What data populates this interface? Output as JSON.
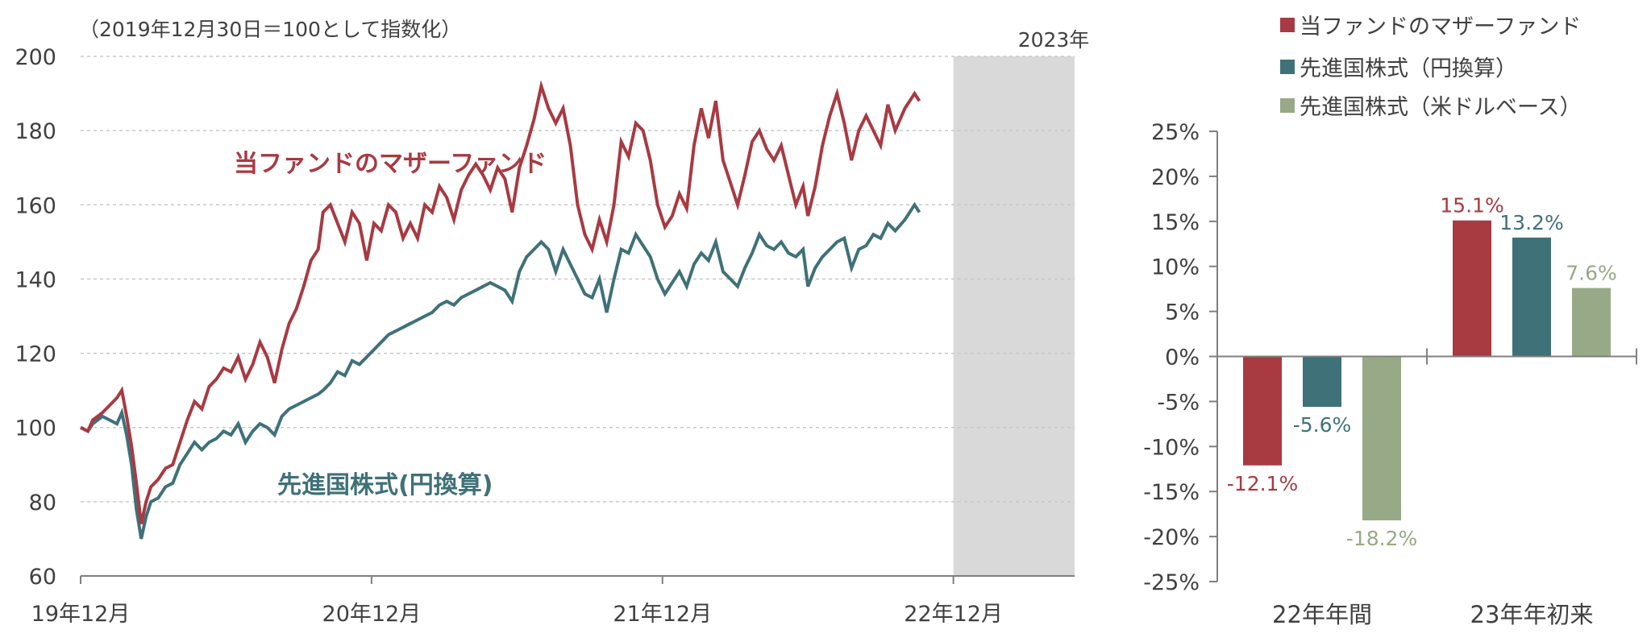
{
  "colors": {
    "fund": "#a83a42",
    "developed_yen": "#3f7178",
    "developed_usd": "#97a986",
    "shade": "#d9d9d9",
    "grid": "#c8c8c8",
    "axis": "#7f7f7f"
  },
  "chart_data": [
    {
      "type": "line",
      "note": "（2019年12月30日＝100として指数化）",
      "shaded_region_label": "2023年",
      "ylim": [
        60,
        200
      ],
      "yticks": [
        "60",
        "80",
        "100",
        "120",
        "140",
        "160",
        "180",
        "200"
      ],
      "xticks": [
        "19年12月",
        "20年12月",
        "21年12月",
        "22年12月"
      ],
      "x_range": [
        "2019-12",
        "2023-05"
      ],
      "shaded_from": "2022-12",
      "series": [
        {
          "name": "当ファンドのマザーファンド",
          "label_text": "当ファンドのマザーファンド",
          "points": [
            [
              0,
              100
            ],
            [
              0.3,
              99
            ],
            [
              0.5,
              102
            ],
            [
              0.9,
              104
            ],
            [
              1.2,
              106
            ],
            [
              1.5,
              108
            ],
            [
              1.7,
              110
            ],
            [
              1.9,
              103
            ],
            [
              2.1,
              95
            ],
            [
              2.3,
              85
            ],
            [
              2.5,
              74
            ],
            [
              2.7,
              80
            ],
            [
              2.9,
              84
            ],
            [
              3.2,
              86
            ],
            [
              3.5,
              89
            ],
            [
              3.8,
              90
            ],
            [
              4.1,
              96
            ],
            [
              4.4,
              102
            ],
            [
              4.7,
              107
            ],
            [
              5.0,
              105
            ],
            [
              5.3,
              111
            ],
            [
              5.6,
              113
            ],
            [
              5.9,
              116
            ],
            [
              6.2,
              115
            ],
            [
              6.5,
              119
            ],
            [
              6.8,
              113
            ],
            [
              7.1,
              117
            ],
            [
              7.4,
              123
            ],
            [
              7.7,
              119
            ],
            [
              8.0,
              112
            ],
            [
              8.3,
              121
            ],
            [
              8.6,
              128
            ],
            [
              8.9,
              132
            ],
            [
              9.2,
              138
            ],
            [
              9.5,
              145
            ],
            [
              9.8,
              148
            ],
            [
              10.0,
              158
            ],
            [
              10.3,
              160
            ],
            [
              10.6,
              155
            ],
            [
              10.9,
              150
            ],
            [
              11.2,
              158
            ],
            [
              11.5,
              155
            ],
            [
              11.8,
              145
            ],
            [
              12.1,
              155
            ],
            [
              12.4,
              153
            ],
            [
              12.7,
              160
            ],
            [
              13.0,
              158
            ],
            [
              13.3,
              151
            ],
            [
              13.6,
              155
            ],
            [
              13.9,
              151
            ],
            [
              14.2,
              160
            ],
            [
              14.5,
              158
            ],
            [
              14.8,
              165
            ],
            [
              15.1,
              162
            ],
            [
              15.4,
              156
            ],
            [
              15.7,
              164
            ],
            [
              16.0,
              168
            ],
            [
              16.3,
              171
            ],
            [
              16.6,
              168
            ],
            [
              16.9,
              164
            ],
            [
              17.2,
              170
            ],
            [
              17.5,
              167
            ],
            [
              17.8,
              158
            ],
            [
              18.1,
              170
            ],
            [
              18.4,
              176
            ],
            [
              18.7,
              183
            ],
            [
              19.0,
              192
            ],
            [
              19.3,
              186
            ],
            [
              19.6,
              182
            ],
            [
              19.9,
              186
            ],
            [
              20.2,
              176
            ],
            [
              20.5,
              160
            ],
            [
              20.8,
              152
            ],
            [
              21.1,
              148
            ],
            [
              21.4,
              156
            ],
            [
              21.7,
              150
            ],
            [
              22.0,
              160
            ],
            [
              22.3,
              177
            ],
            [
              22.6,
              173
            ],
            [
              22.9,
              182
            ],
            [
              23.2,
              180
            ],
            [
              23.5,
              172
            ],
            [
              23.8,
              160
            ],
            [
              24.1,
              154
            ],
            [
              24.4,
              157
            ],
            [
              24.7,
              163
            ],
            [
              25.0,
              159
            ],
            [
              25.3,
              176
            ],
            [
              25.6,
              186
            ],
            [
              25.9,
              178
            ],
            [
              26.2,
              188
            ],
            [
              26.5,
              172
            ],
            [
              26.8,
              166
            ],
            [
              27.1,
              160
            ],
            [
              27.4,
              168
            ],
            [
              27.7,
              177
            ],
            [
              28.0,
              180
            ],
            [
              28.3,
              175
            ],
            [
              28.6,
              172
            ],
            [
              28.9,
              176
            ],
            [
              29.2,
              168
            ],
            [
              29.5,
              160
            ],
            [
              29.8,
              165
            ],
            [
              30.0,
              157
            ],
            [
              30.3,
              165
            ],
            [
              30.6,
              176
            ],
            [
              30.9,
              184
            ],
            [
              31.2,
              190
            ],
            [
              31.5,
              182
            ],
            [
              31.8,
              172
            ],
            [
              32.1,
              180
            ],
            [
              32.4,
              184
            ],
            [
              32.7,
              180
            ],
            [
              33.0,
              176
            ],
            [
              33.3,
              187
            ],
            [
              33.6,
              180
            ],
            [
              34.0,
              186
            ],
            [
              34.4,
              190
            ],
            [
              34.6,
              188
            ]
          ]
        },
        {
          "name": "先進国株式（円換算）",
          "label_text": "先進国株式(円換算)",
          "points": [
            [
              0,
              100
            ],
            [
              0.3,
              99
            ],
            [
              0.5,
              101
            ],
            [
              0.9,
              103
            ],
            [
              1.2,
              102
            ],
            [
              1.5,
              101
            ],
            [
              1.7,
              104
            ],
            [
              1.9,
              98
            ],
            [
              2.1,
              90
            ],
            [
              2.3,
              78
            ],
            [
              2.5,
              70
            ],
            [
              2.7,
              76
            ],
            [
              2.9,
              80
            ],
            [
              3.2,
              81
            ],
            [
              3.5,
              84
            ],
            [
              3.8,
              85
            ],
            [
              4.1,
              90
            ],
            [
              4.4,
              93
            ],
            [
              4.7,
              96
            ],
            [
              5.0,
              94
            ],
            [
              5.3,
              96
            ],
            [
              5.6,
              97
            ],
            [
              5.9,
              99
            ],
            [
              6.2,
              98
            ],
            [
              6.5,
              101
            ],
            [
              6.8,
              96
            ],
            [
              7.1,
              99
            ],
            [
              7.4,
              101
            ],
            [
              7.7,
              100
            ],
            [
              8.0,
              98
            ],
            [
              8.3,
              103
            ],
            [
              8.6,
              105
            ],
            [
              8.9,
              106
            ],
            [
              9.2,
              107
            ],
            [
              9.5,
              108
            ],
            [
              9.8,
              109
            ],
            [
              10.0,
              110
            ],
            [
              10.3,
              112
            ],
            [
              10.6,
              115
            ],
            [
              10.9,
              114
            ],
            [
              11.2,
              118
            ],
            [
              11.5,
              117
            ],
            [
              11.8,
              119
            ],
            [
              12.1,
              121
            ],
            [
              12.4,
              123
            ],
            [
              12.7,
              125
            ],
            [
              13.0,
              126
            ],
            [
              13.3,
              127
            ],
            [
              13.6,
              128
            ],
            [
              13.9,
              129
            ],
            [
              14.2,
              130
            ],
            [
              14.5,
              131
            ],
            [
              14.8,
              133
            ],
            [
              15.1,
              134
            ],
            [
              15.4,
              133
            ],
            [
              15.7,
              135
            ],
            [
              16.0,
              136
            ],
            [
              16.3,
              137
            ],
            [
              16.6,
              138
            ],
            [
              16.9,
              139
            ],
            [
              17.2,
              138
            ],
            [
              17.5,
              137
            ],
            [
              17.8,
              134
            ],
            [
              18.1,
              142
            ],
            [
              18.4,
              146
            ],
            [
              18.7,
              148
            ],
            [
              19.0,
              150
            ],
            [
              19.3,
              148
            ],
            [
              19.6,
              142
            ],
            [
              19.9,
              148
            ],
            [
              20.2,
              144
            ],
            [
              20.5,
              140
            ],
            [
              20.8,
              136
            ],
            [
              21.1,
              135
            ],
            [
              21.4,
              140
            ],
            [
              21.7,
              131
            ],
            [
              22.0,
              140
            ],
            [
              22.3,
              148
            ],
            [
              22.6,
              147
            ],
            [
              22.9,
              152
            ],
            [
              23.2,
              149
            ],
            [
              23.5,
              146
            ],
            [
              23.8,
              140
            ],
            [
              24.1,
              136
            ],
            [
              24.4,
              139
            ],
            [
              24.7,
              142
            ],
            [
              25.0,
              138
            ],
            [
              25.3,
              144
            ],
            [
              25.6,
              147
            ],
            [
              25.9,
              145
            ],
            [
              26.2,
              150
            ],
            [
              26.5,
              142
            ],
            [
              26.8,
              140
            ],
            [
              27.1,
              138
            ],
            [
              27.4,
              143
            ],
            [
              27.7,
              147
            ],
            [
              28.0,
              152
            ],
            [
              28.3,
              149
            ],
            [
              28.6,
              148
            ],
            [
              28.9,
              150
            ],
            [
              29.2,
              147
            ],
            [
              29.5,
              146
            ],
            [
              29.8,
              148
            ],
            [
              30.0,
              138
            ],
            [
              30.3,
              143
            ],
            [
              30.6,
              146
            ],
            [
              30.9,
              148
            ],
            [
              31.2,
              150
            ],
            [
              31.5,
              151
            ],
            [
              31.8,
              143
            ],
            [
              32.1,
              148
            ],
            [
              32.4,
              149
            ],
            [
              32.7,
              152
            ],
            [
              33.0,
              151
            ],
            [
              33.3,
              155
            ],
            [
              33.6,
              153
            ],
            [
              34.0,
              156
            ],
            [
              34.4,
              160
            ],
            [
              34.6,
              158
            ]
          ]
        }
      ]
    },
    {
      "type": "bar",
      "categories": [
        "22年年間",
        "23年年初来"
      ],
      "ylim": [
        -25,
        25
      ],
      "yticks": [
        "25%",
        "20%",
        "15%",
        "10%",
        "5%",
        "0%",
        "-5%",
        "-10%",
        "-15%",
        "-20%",
        "-25%"
      ],
      "series": [
        {
          "name": "当ファンドのマザーファンド",
          "values": [
            -12.1,
            15.1
          ],
          "labels": [
            "-12.1%",
            "15.1%"
          ]
        },
        {
          "name": "先進国株式（円換算）",
          "values": [
            -5.6,
            13.2
          ],
          "labels": [
            "-5.6%",
            "13.2%"
          ]
        },
        {
          "name": "先進国株式（米ドルベース）",
          "values": [
            -18.2,
            7.6
          ],
          "labels": [
            "-18.2%",
            "7.6%"
          ]
        }
      ]
    }
  ]
}
